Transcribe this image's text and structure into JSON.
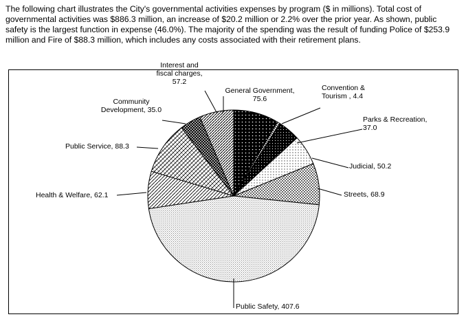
{
  "intro_text": "The following chart illustrates the City's governmental activities expenses by program ($ in millions). Total cost of governmental activities was $886.3 million, an increase of $20.2 million or 2.2% over the prior year. As shown, public safety is the largest function in expense (46.0%). The majority of the spending was the result of funding Police of $253.9 million and Fire of $88.3 million, which includes any costs associated with their retirement plans.",
  "chart_data": {
    "type": "pie",
    "categories": [
      "General Government",
      "Convention & Tourism",
      "Parks & Recreation",
      "Judicial",
      "Streets",
      "Public Safety",
      "Health & Welfare",
      "Public Service",
      "Community Development",
      "Interest and fiscal charges"
    ],
    "values": [
      75.6,
      4.4,
      37.0,
      50.2,
      68.9,
      407.6,
      62.1,
      88.3,
      35.0,
      57.2
    ],
    "labels": [
      [
        "General Government,",
        "75.6"
      ],
      [
        "Convention &",
        "Tourism , 4.4"
      ],
      [
        "Parks & Recreation,",
        "37.0"
      ],
      [
        "Judicial, 50.2"
      ],
      [
        "Streets, 68.9"
      ],
      [
        "Public Safety, 407.6"
      ],
      [
        "Health & Welfare, 62.1"
      ],
      [
        "Public Service, 88.3"
      ],
      [
        "Community",
        "Development, 35.0"
      ],
      [
        "Interest and",
        "fiscal charges,",
        "57.2"
      ]
    ],
    "start_angle_deg": 0,
    "direction": "clockwise"
  }
}
